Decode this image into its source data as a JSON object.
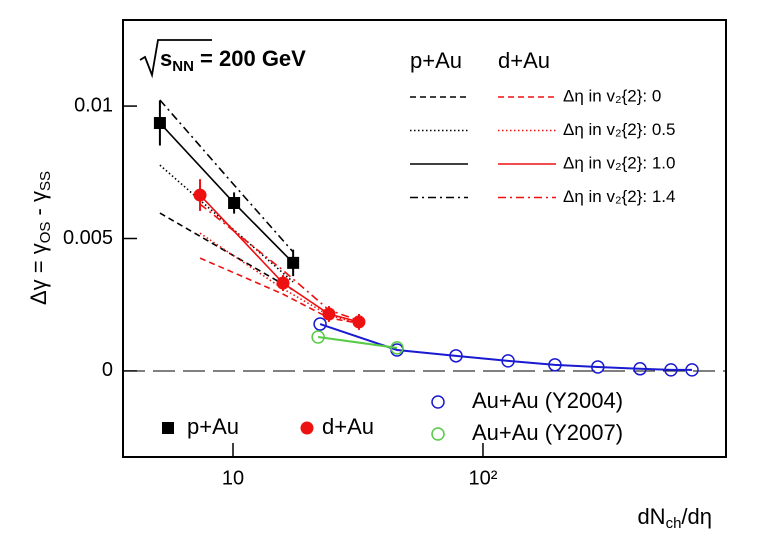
{
  "chart_data": {
    "type": "scatter",
    "xlog": true,
    "xlim": [
      3.63,
      938
    ],
    "ylim": [
      -0.00325,
      0.01325
    ],
    "xticks": [
      10,
      {
        "value": 100,
        "label": "10²"
      }
    ],
    "yticks": [
      0,
      0.005,
      0.01
    ],
    "y_label": [
      "Δγ = γ",
      "OS",
      " - γ",
      "SS"
    ],
    "x_label": [
      "dN",
      "ch",
      "/dη"
    ],
    "annotation": {
      "symbol": "s",
      "sub": "NN",
      "text": " = 200 GeV"
    },
    "series": [
      {
        "name": "p+Au",
        "color": "#000000",
        "marker": "square",
        "x": [
          5.1,
          10.1,
          17.4
        ],
        "values": [
          0.00936,
          0.00634,
          0.00408
        ],
        "errors": [
          0.00085,
          0.0004,
          0.0005
        ]
      },
      {
        "name": "d+Au",
        "color": "#ee1111",
        "marker": "circle",
        "x": [
          7.38,
          15.85,
          24.2,
          31.9
        ],
        "values": [
          0.00664,
          0.00332,
          0.00215,
          0.00185
        ],
        "errors": [
          0.0006,
          0.0003,
          0.0003,
          0.0003
        ]
      },
      {
        "name": "Au+Au (Y2004)",
        "color": "#1a1ad0",
        "marker": "open-circle",
        "line": true,
        "x": [
          22.3,
          45.3,
          78,
          126,
          194,
          288,
          425,
          565,
          686
        ],
        "values": [
          0.00177,
          0.00079,
          0.00057,
          0.00038,
          0.00023,
          0.00015,
          8e-05,
          4e-05,
          4e-05
        ]
      },
      {
        "name": "Au+Au (Y2007)",
        "color": "#55cc44",
        "marker": "open-circle",
        "line": true,
        "x": [
          21.9,
          45.3
        ],
        "values": [
          0.00128,
          0.00087
        ]
      }
    ],
    "curve_labels": [
      "Δη in v₂{2}: 0",
      "Δη in v₂{2}: 0.5",
      "Δη in v₂{2}: 1.0",
      "Δη in v₂{2}: 1.4"
    ],
    "curve_dashes": [
      "dashed",
      "dotted",
      "solid",
      "dashdot"
    ],
    "curve_groups": [
      {
        "name": "p+Au",
        "color": "#000000",
        "x": [
          5.1,
          10.1,
          17.4
        ],
        "curves": [
          [
            0.00596,
            0.00434,
            0.00306
          ],
          [
            0.00777,
            0.00532,
            0.00336
          ],
          [
            0.00936,
            0.00634,
            0.00408
          ],
          [
            0.01023,
            0.00702,
            0.00449
          ]
        ]
      },
      {
        "name": "d+Au",
        "color": "#ee1111",
        "x": [
          7.38,
          15.85,
          24.2,
          31.9
        ],
        "curves": [
          [
            0.00426,
            0.0029,
            0.002,
            0.0018
          ],
          [
            0.0052,
            0.0031,
            0.0021,
            0.0018
          ],
          [
            0.00664,
            0.00332,
            0.00215,
            0.00185
          ],
          [
            0.0063,
            0.0038,
            0.0023,
            0.0019
          ]
        ]
      }
    ]
  }
}
